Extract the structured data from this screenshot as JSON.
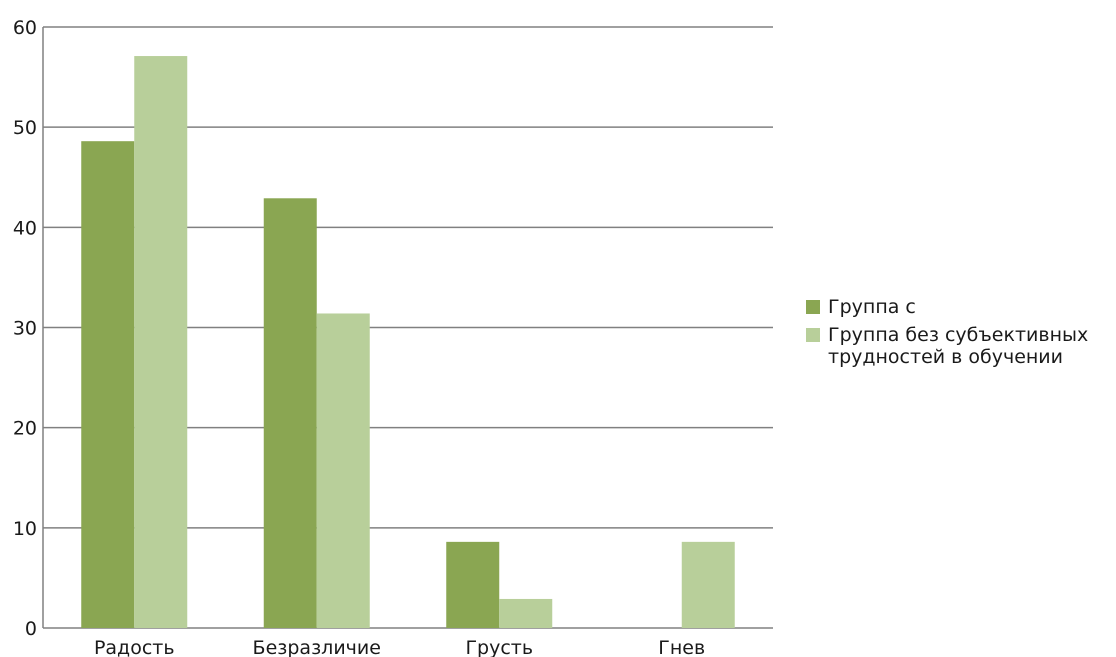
{
  "chart_data": {
    "type": "bar",
    "categories": [
      "Радость",
      "Безразличие",
      "Грусть",
      "Гнев"
    ],
    "series": [
      {
        "name": "Группа с",
        "color": "#8aa652",
        "values": [
          48.6,
          42.9,
          8.6,
          0
        ]
      },
      {
        "name": "Группа без субъективных\nтрудностей в обучении",
        "color": "#b8cf9a",
        "values": [
          57.1,
          31.4,
          2.9,
          8.6
        ]
      }
    ],
    "ylim": [
      0,
      60
    ],
    "yticks": [
      0,
      10,
      20,
      30,
      40,
      50,
      60
    ],
    "grid": true,
    "legend_position": "right"
  }
}
